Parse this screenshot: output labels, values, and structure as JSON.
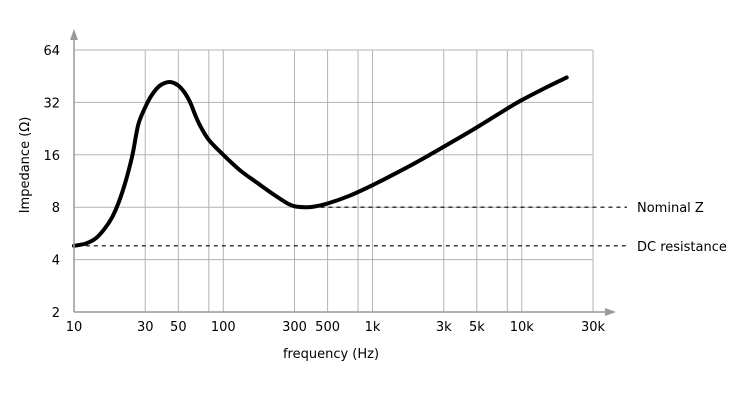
{
  "chart_data": {
    "type": "line",
    "title": "",
    "xlabel": "frequency (Hz)",
    "ylabel": "Impedance (Ω)",
    "x_scale": "log",
    "y_scale": "log",
    "xlim": [
      10,
      30000
    ],
    "ylim": [
      2,
      64
    ],
    "grid": true,
    "x_ticks": [
      {
        "value": 10,
        "label": "10"
      },
      {
        "value": 30,
        "label": "30"
      },
      {
        "value": 50,
        "label": "50"
      },
      {
        "value": 100,
        "label": "100"
      },
      {
        "value": 300,
        "label": "300"
      },
      {
        "value": 500,
        "label": "500"
      },
      {
        "value": 1000,
        "label": "1k"
      },
      {
        "value": 3000,
        "label": "3k"
      },
      {
        "value": 5000,
        "label": "5k"
      },
      {
        "value": 10000,
        "label": "10k"
      },
      {
        "value": 30000,
        "label": "30k"
      }
    ],
    "x_extra_gridlines": [
      80,
      800,
      8000
    ],
    "y_ticks": [
      {
        "value": 2,
        "label": "2"
      },
      {
        "value": 4,
        "label": "4"
      },
      {
        "value": 8,
        "label": "8"
      },
      {
        "value": 16,
        "label": "16"
      },
      {
        "value": 32,
        "label": "32"
      },
      {
        "value": 64,
        "label": "64"
      }
    ],
    "series": [
      {
        "points": [
          [
            10,
            4.8
          ],
          [
            12,
            4.95
          ],
          [
            14,
            5.3
          ],
          [
            16,
            6.0
          ],
          [
            18,
            7.0
          ],
          [
            20,
            8.6
          ],
          [
            22,
            11.0
          ],
          [
            24,
            14.5
          ],
          [
            25,
            17.0
          ],
          [
            27,
            24.0
          ],
          [
            30,
            30.0
          ],
          [
            33,
            35.0
          ],
          [
            37,
            39.5
          ],
          [
            41,
            41.5
          ],
          [
            45,
            41.8
          ],
          [
            50,
            40.0
          ],
          [
            55,
            36.5
          ],
          [
            60,
            32.0
          ],
          [
            65,
            27.0
          ],
          [
            70,
            23.5
          ],
          [
            80,
            19.5
          ],
          [
            100,
            16.0
          ],
          [
            130,
            13.0
          ],
          [
            170,
            11.0
          ],
          [
            220,
            9.4
          ],
          [
            270,
            8.4
          ],
          [
            300,
            8.1
          ],
          [
            350,
            8.0
          ],
          [
            400,
            8.05
          ],
          [
            500,
            8.4
          ],
          [
            700,
            9.3
          ],
          [
            1000,
            10.7
          ],
          [
            1500,
            12.8
          ],
          [
            2000,
            14.6
          ],
          [
            3000,
            17.8
          ],
          [
            5000,
            23.0
          ],
          [
            8000,
            29.5
          ],
          [
            10000,
            33.0
          ],
          [
            15000,
            39.5
          ],
          [
            20000,
            44.5
          ]
        ]
      }
    ],
    "reference_lines": [
      {
        "label": "Nominal Z",
        "value": 8,
        "from_x": 350
      },
      {
        "label": "DC resistance",
        "value": 4.8,
        "from_x": 12
      }
    ]
  }
}
